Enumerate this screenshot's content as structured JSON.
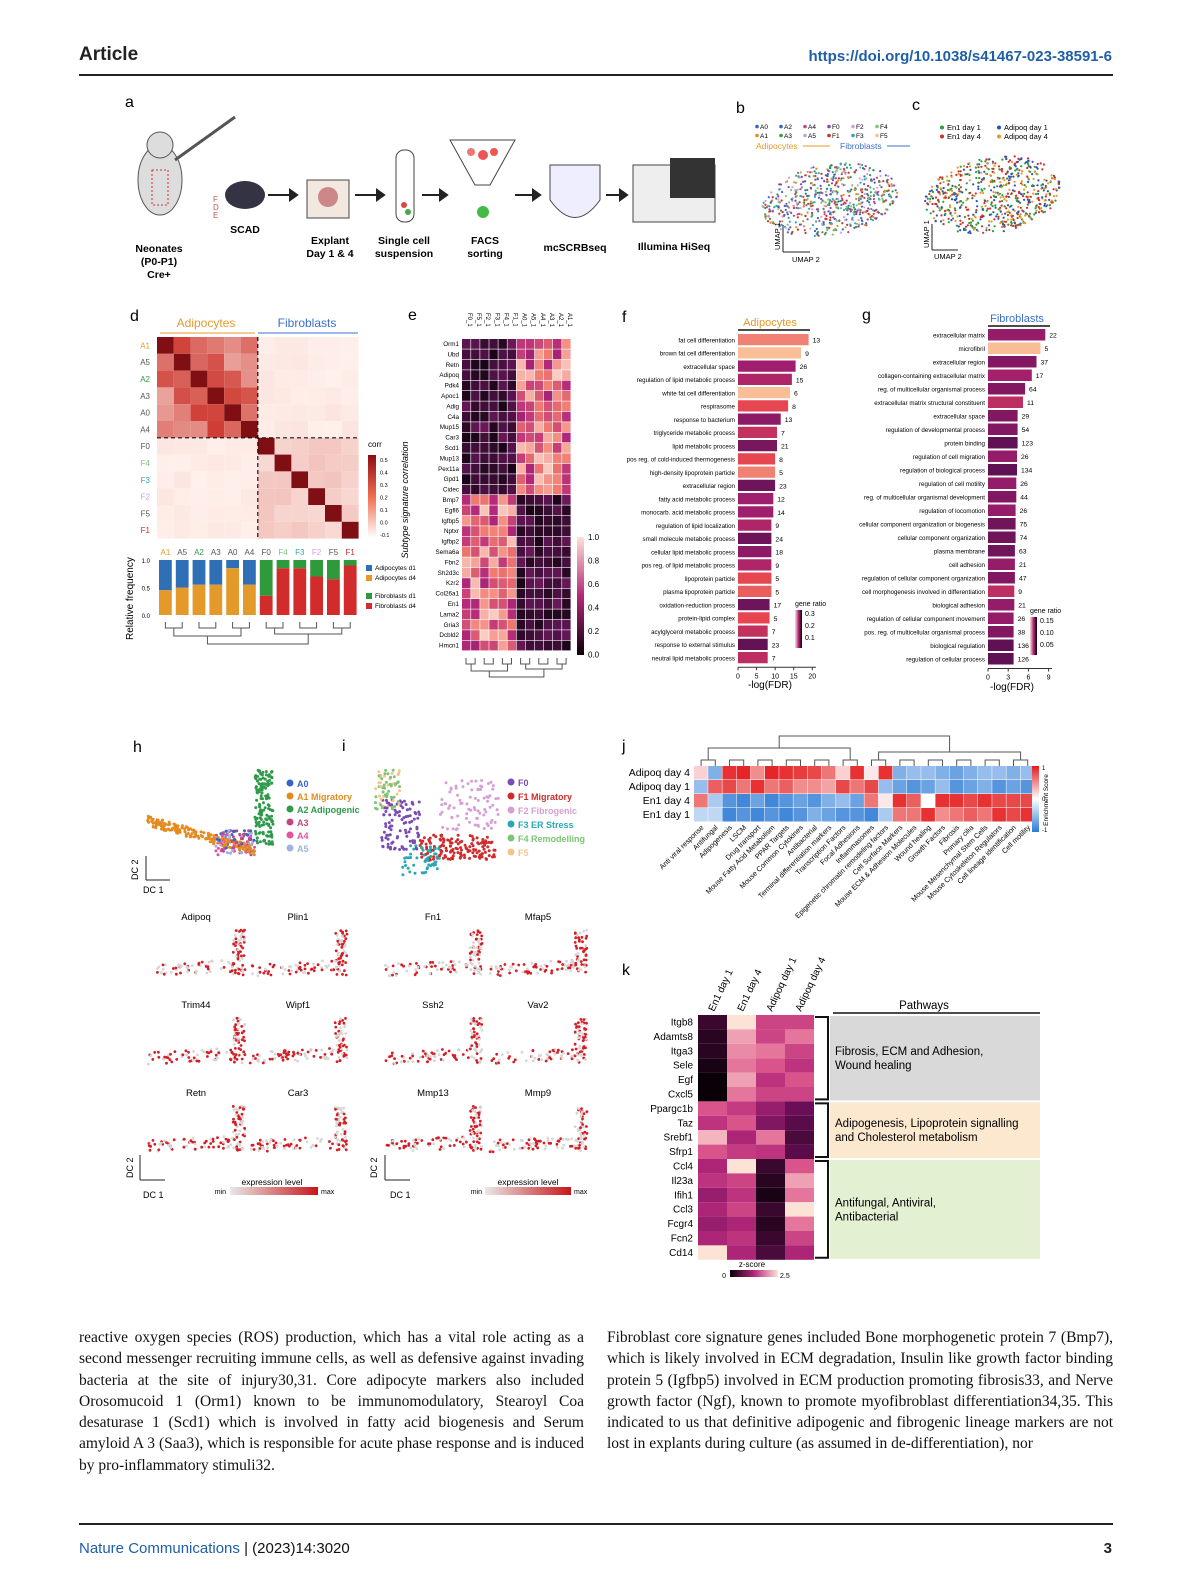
{
  "header": {
    "label": "Article",
    "doi": "https://doi.org/10.1038/s41467-023-38591-6"
  },
  "panels": {
    "a": "a",
    "b": "b",
    "c": "c",
    "d": "d",
    "e": "e",
    "f": "f",
    "g": "g",
    "h": "h",
    "i": "i",
    "j": "j",
    "k": "k"
  },
  "panel_a": {
    "steps": [
      "SCAD",
      "Explant\nDay 1 & 4",
      "Single cell\nsuspension",
      "FACS\nsorting",
      "mcSCRBseq",
      "Illumina HiSeq"
    ],
    "neonates": [
      "Neonates",
      "(P0-P1)",
      "Cre+"
    ],
    "fde": [
      "F",
      "D",
      "E"
    ]
  },
  "panel_b": {
    "legend": [
      "A0",
      "A2",
      "A4",
      "F0",
      "F2",
      "F4",
      "A1",
      "A3",
      "A5",
      "F1",
      "F3",
      "F5"
    ],
    "group_adipocytes": "Adipocytes",
    "group_fibroblasts": "Fibroblasts",
    "umap1": "UMAP 1",
    "umap2": "UMAP 2"
  },
  "panel_c": {
    "legend": [
      "En1 day 1",
      "Adipoq day 1",
      "En1 day 4",
      "Adipoq day 4"
    ],
    "legend_colors": [
      "#2a9d3a",
      "#2656b5",
      "#d22b2b",
      "#e39a2b"
    ]
  },
  "panel_d": {
    "adipocytes": "Adipocytes",
    "fibroblasts": "Fibroblasts",
    "rows": [
      "A1",
      "A5",
      "A2",
      "A3",
      "A0",
      "A4",
      "F0",
      "F4",
      "F3",
      "F2",
      "F5",
      "F1"
    ],
    "cols": [
      "A1",
      "A5",
      "A2",
      "A3",
      "A0",
      "A4",
      "F0",
      "F4",
      "F3",
      "F2",
      "F5",
      "F1"
    ],
    "corr_label": "corr",
    "corr_ticks": [
      "0.5",
      "0.4",
      "0.3",
      "0.2",
      "0.1",
      "0.0",
      "-0.1"
    ],
    "ylabel_bar": "Relative frequency",
    "bar_ticks": [
      "1.0",
      "0.5",
      "0.0"
    ],
    "bar_legend": [
      "Adipocytes d1",
      "Adipocytes d4",
      "Fibroblasts d1",
      "Fibroblasts d4"
    ],
    "bar_legend_colors": [
      "#2f6fb5",
      "#e39a2b",
      "#2e9a3c",
      "#d22b2b"
    ],
    "bar_day4": [
      0.45,
      0.5,
      0.55,
      0.55,
      0.85,
      0.55,
      0.35,
      0.85,
      0.85,
      0.7,
      0.65,
      0.9
    ]
  },
  "panel_e": {
    "genes": [
      "Orm1",
      "Ubd",
      "Retn",
      "Adipoq",
      "Pdk4",
      "Apoc1",
      "Adig",
      "C4a",
      "Mup15",
      "Car3",
      "Scd1",
      "Mup13",
      "Pex11a",
      "Gpd1",
      "Cidec",
      "Bmp7",
      "Egfl6",
      "Igfbp5",
      "Nptxr",
      "Igfbp2",
      "Sema6a",
      "Fbn2",
      "Sh2d3c",
      "Kzr2",
      "Col26a1",
      "En1",
      "Lama2",
      "Gria3",
      "Dcbld2",
      "Hmcn1"
    ],
    "cols": [
      "F0",
      "F5",
      "F2",
      "F3",
      "F4",
      "F1",
      "A0",
      "A5",
      "A4",
      "A3",
      "A2",
      "A1"
    ],
    "ylabel": "Subtype signature correlation",
    "scale": [
      "1.0",
      "0.8",
      "0.6",
      "0.4",
      "0.2",
      "0.0"
    ]
  },
  "panel_f": {
    "title": "Adipocytes",
    "terms": [
      "fat cell differentiation",
      "brown fat cell differentiation",
      "extracellular space",
      "regulation of lipid metabolic process",
      "white fat cell differentiation",
      "respirasome",
      "response to bacterium",
      "triglyceride metabolic process",
      "lipid metabolic process",
      "pos reg. of cold-induced thermogenesis",
      "high-density lipoprotein particle",
      "extracellular region",
      "fatty acid metabolic process",
      "monocarb. acid metabolic process",
      "regulation of lipid localization",
      "small molecule metabolic process",
      "cellular lipid metabolic process",
      "pos reg. of lipid metabolic process",
      "lipoprotein particle",
      "plasma lipoprotein particle",
      "oxidation-reduction process",
      "protein-lipid complex",
      "acylglycerol metabolic process",
      "response to external stimulus",
      "neutral lipid metabolic process"
    ],
    "values": [
      19,
      17,
      15.5,
      14.5,
      14,
      13.5,
      11.5,
      10.5,
      10.5,
      10,
      10,
      10,
      9.5,
      9.5,
      9,
      9,
      9,
      9,
      9,
      9,
      8.5,
      8.5,
      8,
      8,
      8
    ],
    "counts": [
      "13",
      "9",
      "26",
      "15",
      "6",
      "8",
      "13",
      "7",
      "21",
      "8",
      "5",
      "23",
      "12",
      "14",
      "9",
      "24",
      "18",
      "9",
      "5",
      "5",
      "17",
      "5",
      "7",
      "23",
      "7"
    ],
    "ratio": [
      0.25,
      0.3,
      0.1,
      0.12,
      0.3,
      0.2,
      0.08,
      0.15,
      0.06,
      0.2,
      0.25,
      0.05,
      0.1,
      0.1,
      0.12,
      0.05,
      0.08,
      0.12,
      0.2,
      0.22,
      0.05,
      0.2,
      0.15,
      0.04,
      0.14
    ],
    "xticks": [
      "0",
      "5",
      "10",
      "15",
      "20"
    ],
    "xlabel": "-log(FDR)",
    "legend_title": "gene ratio",
    "legend_ticks": [
      "0.3",
      "0.2",
      "0.1"
    ]
  },
  "panel_g": {
    "title": "Fibroblasts",
    "terms": [
      "extracellular matrix",
      "microfibril",
      "extracellular region",
      "collagen-containing extracellular matrix",
      "reg. of multicellular organismal process",
      "extracellular matrix structural constituent",
      "extracellular space",
      "regulation of developmental process",
      "protein binding",
      "regulation of cell migration",
      "regulation of biological process",
      "regulation of cell motility",
      "reg. of multicellular organismal development",
      "regulation of locomotion",
      "cellular component organization or biogenesis",
      "cellular component organization",
      "plasma membrane",
      "cell adhesion",
      "regulation of cellular component organization",
      "cell morphogenesis involved in differentiation",
      "biological adhesion",
      "regulation of cellular component movement",
      "pos. reg. of multicellular organismal process",
      "biological regulation",
      "regulation of cellular process"
    ],
    "values": [
      8.5,
      7.8,
      7.2,
      6.5,
      5.5,
      5.2,
      4.4,
      4.4,
      4.4,
      4.3,
      4.3,
      4.2,
      4.2,
      4.1,
      4.1,
      4.1,
      4.0,
      4.0,
      4.0,
      3.9,
      3.9,
      3.8,
      3.8,
      3.8,
      3.8
    ],
    "counts": [
      "22",
      "5",
      "37",
      "17",
      "64",
      "11",
      "29",
      "54",
      "123",
      "26",
      "134",
      "26",
      "44",
      "26",
      "75",
      "74",
      "63",
      "21",
      "47",
      "9",
      "21",
      "26",
      "38",
      "136",
      "126"
    ],
    "ratio": [
      0.05,
      0.17,
      0.04,
      0.06,
      0.04,
      0.08,
      0.04,
      0.04,
      0.02,
      0.05,
      0.02,
      0.05,
      0.04,
      0.05,
      0.03,
      0.03,
      0.03,
      0.05,
      0.04,
      0.08,
      0.05,
      0.05,
      0.04,
      0.02,
      0.02
    ],
    "xticks": [
      "0",
      "3",
      "6",
      "9"
    ],
    "xlabel": "-log(FDR)",
    "legend_title": "gene ratio",
    "legend_ticks": [
      "0.15",
      "0.10",
      "0.05"
    ]
  },
  "panel_h": {
    "legend": [
      "A0",
      "A1 Migratory",
      "A2 Adipogenic",
      "A3",
      "A4",
      "A5"
    ],
    "legend_colors": [
      "#3a63c6",
      "#e58a1f",
      "#2e9a4a",
      "#c0477f",
      "#e0559c",
      "#9fb3e0"
    ],
    "dc2": "DC 2",
    "dc1": "DC 1",
    "genes": [
      "Adipoq",
      "Plin1",
      "Trim44",
      "Wipf1",
      "Retn",
      "Car3"
    ]
  },
  "panel_i": {
    "legend": [
      "F0",
      "F1 Migratory",
      "F2 Fibrogenic",
      "F3 ER Stress",
      "F4 Remodelling",
      "F5"
    ],
    "legend_colors": [
      "#7a4bb3",
      "#d22b2b",
      "#d79ed6",
      "#2aa8b5",
      "#7cc576",
      "#f5c48a"
    ],
    "genes": [
      "Fn1",
      "Mfap5",
      "Ssh2",
      "Vav2",
      "Mmp13",
      "Mmp9"
    ]
  },
  "expression": {
    "label": "expression level",
    "min": "min",
    "max": "max"
  },
  "panel_j": {
    "rows": [
      "Adipoq day 4",
      "Adipoq day 1",
      "En1 day 4",
      "En1 day 1"
    ],
    "cols": [
      "Anti viral response",
      "Antifungal",
      "Adipogenesis",
      "LSCM",
      "Drug transport",
      "Mouse Fatty Acid Metabolism",
      "PPAR Targets",
      "Mouse Common Cytokines",
      "Antibacterial",
      "Terminal differentiation markers",
      "Transcription Factors",
      "Focal Adhesions",
      "Inflammasomes",
      "Epigenetic chromatin remodeling factors",
      "Cell Surface Markers",
      "Mouse ECM & Adhesion Molecules",
      "Wound healing",
      "Growth Factors",
      "Fibrosis",
      "Primary cilia",
      "Mouse Mesenchymal Stem Cells",
      "Mouse Cytoskeleton Regulators",
      "Cell lineage identification",
      "Cell motility"
    ],
    "scale_title": "Enrichment Score",
    "scale": [
      "1",
      "0",
      "-1"
    ],
    "values": [
      [
        0.2,
        -0.6,
        0.9,
        0.95,
        0.5,
        0.95,
        0.9,
        0.85,
        0.8,
        0.6,
        0.2,
        0.9,
        0.1,
        0.9,
        -0.6,
        -0.5,
        -0.5,
        -0.6,
        -0.7,
        -0.6,
        -0.5,
        -0.5,
        -0.6,
        -0.5
      ],
      [
        -0.5,
        0.7,
        0.8,
        0.6,
        0.9,
        0.6,
        0.7,
        0.5,
        0.5,
        0.4,
        0.8,
        0.6,
        0.8,
        -0.5,
        -0.7,
        -0.8,
        -0.7,
        -0.5,
        -0.8,
        -0.7,
        -0.6,
        -0.8,
        -0.7,
        -0.8
      ],
      [
        0.6,
        -0.4,
        -0.8,
        -0.9,
        -0.7,
        -0.9,
        -0.8,
        -0.7,
        -0.8,
        -0.6,
        -0.5,
        -0.7,
        0.6,
        0.1,
        0.9,
        0.7,
        0.0,
        0.9,
        0.9,
        0.8,
        0.9,
        0.8,
        0.8,
        0.8
      ],
      [
        -0.3,
        -0.3,
        -0.9,
        -0.8,
        -0.9,
        -0.8,
        -0.9,
        -0.8,
        -0.6,
        -0.7,
        -0.8,
        -0.8,
        -0.9,
        -0.4,
        0.6,
        0.6,
        0.9,
        0.5,
        0.6,
        0.7,
        0.6,
        0.9,
        0.8,
        0.9
      ]
    ]
  },
  "panel_k": {
    "cols": [
      "En1 day 1",
      "En1 day 4",
      "Adipoq day 1",
      "Adipoq day 4"
    ],
    "genes": [
      "Itgb8",
      "Adamts8",
      "Itga3",
      "Sele",
      "Egf",
      "Cxcl5",
      "Ppargc1b",
      "Taz",
      "Srebf1",
      "Sfrp1",
      "Ccl4",
      "Il23a",
      "Ifih1",
      "Ccl3",
      "Fcgr4",
      "Fcn2",
      "Cd14"
    ],
    "values": [
      [
        0.3,
        2.5,
        1.6,
        1.6
      ],
      [
        0.2,
        2.2,
        1.6,
        2.0
      ],
      [
        0.2,
        2.1,
        2.0,
        1.6
      ],
      [
        0.1,
        2.0,
        1.8,
        1.4
      ],
      [
        0.0,
        2.2,
        1.4,
        1.8
      ],
      [
        0.0,
        2.0,
        1.6,
        1.6
      ],
      [
        1.8,
        1.5,
        1.0,
        0.6
      ],
      [
        1.4,
        1.8,
        0.8,
        0.5
      ],
      [
        2.3,
        1.2,
        2.0,
        0.4
      ],
      [
        1.8,
        1.5,
        1.4,
        0.5
      ],
      [
        1.2,
        2.5,
        0.3,
        1.8
      ],
      [
        1.4,
        1.6,
        0.2,
        2.2
      ],
      [
        1.0,
        1.4,
        0.1,
        2.0
      ],
      [
        1.2,
        1.6,
        0.3,
        2.5
      ],
      [
        1.0,
        1.2,
        0.2,
        2.0
      ],
      [
        1.2,
        1.4,
        0.3,
        1.6
      ],
      [
        2.5,
        1.2,
        0.4,
        1.2
      ]
    ],
    "pathways_title": "Pathways",
    "pathways": [
      "Fibrosis, ECM and Adhesion,\nWound healing",
      "Adipogenesis, Lipoprotein signalling\nand Cholesterol metabolism",
      "Antifungal, Antiviral,\nAntibacterial"
    ],
    "pathway_colors": [
      "#d9d9d9",
      "#fbe8cf",
      "#e3f0d2"
    ],
    "scale_title": "z-score",
    "scale": [
      "0",
      "2.5"
    ]
  },
  "text_left": "reactive oxygen species (ROS) production, which has a vital role acting as a second messenger recruiting immune cells, as well as defensive against invading bacteria at the site of injury30,31. Core adipocyte markers also included Orosomucoid 1 (Orm1) known to be immunomodulatory, Stearoyl Coa desaturase 1 (Scd1) which is involved in fatty acid biogenesis and Serum amyloid A 3 (Saa3), which is responsible for acute phase response and is induced by pro-inflammatory stimuli32.",
  "text_right": "Fibroblast core signature genes included Bone morphogenetic protein 7 (Bmp7), which is likely involved in ECM degradation, Insulin like growth factor binding protein 5 (Igfbp5) involved in ECM production promoting fibrosis33, and Nerve growth factor (Ngf), known to promote myofibroblast differentiation34,35. This indicated to us that definitive adipogenic and fibrogenic lineage markers are not lost in explants during culture (as assumed in de-differentiation), nor",
  "footer": {
    "journal": "Nature Communications",
    "issue": " | (2023)14:3020",
    "page": "3"
  }
}
